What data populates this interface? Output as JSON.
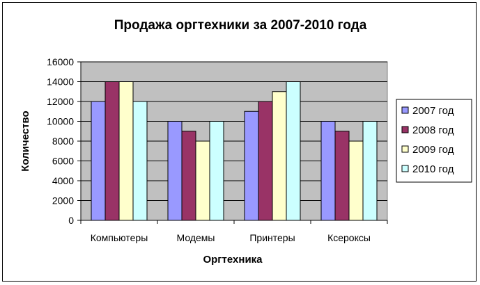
{
  "chart_data": {
    "type": "bar",
    "title": "Продажа оргтехники за 2007-2010 года",
    "xlabel": "Оргтехника",
    "ylabel": "Количество",
    "categories": [
      "Компьютеры",
      "Модемы",
      "Принтеры",
      "Ксероксы"
    ],
    "series": [
      {
        "name": "2007 год",
        "color": "#9999ff",
        "values": [
          12000,
          10000,
          11000,
          10000
        ]
      },
      {
        "name": "2008 год",
        "color": "#993366",
        "values": [
          14000,
          9000,
          12000,
          9000
        ]
      },
      {
        "name": "2009 год",
        "color": "#ffffcc",
        "values": [
          14000,
          8000,
          13000,
          8000
        ]
      },
      {
        "name": "2010 год",
        "color": "#ccffff",
        "values": [
          12000,
          10000,
          14000,
          10000
        ]
      }
    ],
    "ylim": [
      0,
      16000
    ],
    "yticks": [
      "0",
      "2000",
      "4000",
      "6000",
      "8000",
      "10000",
      "12000",
      "14000",
      "16000"
    ],
    "grid": true,
    "plot_background": "#c0c0c0",
    "legend_position": "right"
  }
}
